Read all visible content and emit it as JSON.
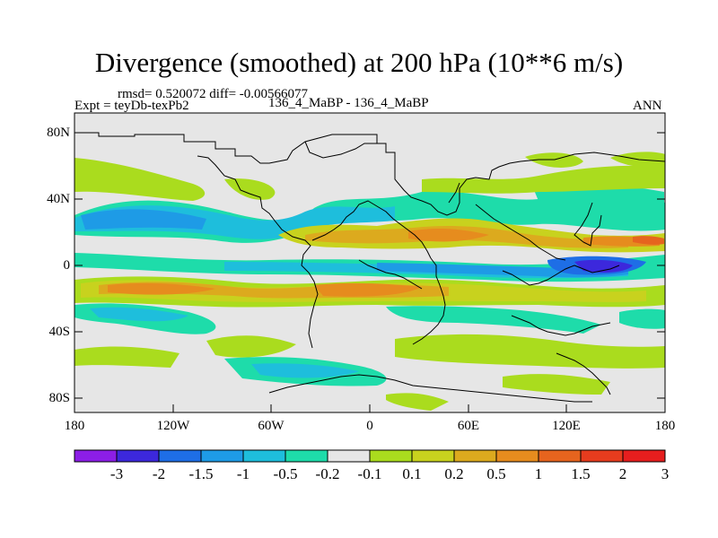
{
  "title": "Divergence (smoothed) at 200 hPa (10**6 m/s)",
  "stats": "rmsd= 0.520072 diff= -0.00566077",
  "experiment": "Expt = teyDb-texPb2",
  "case": "136_4_MaBP - 136_4_MaBP",
  "period": "ANN",
  "lat_ticks": [
    "80N",
    "40N",
    "0",
    "40S",
    "80S"
  ],
  "lon_ticks": [
    "180",
    "120W",
    "60W",
    "0",
    "60E",
    "120E",
    "180"
  ],
  "colorbar": {
    "labels": [
      "-3",
      "-2",
      "-1.5",
      "-1",
      "-0.5",
      "-0.2",
      "-0.1",
      "0.1",
      "0.2",
      "0.5",
      "1",
      "1.5",
      "2",
      "3"
    ],
    "colors": [
      "#8c1ee6",
      "#3c28dc",
      "#1e6ee6",
      "#1e9be6",
      "#1ebedc",
      "#1edcaa",
      "#e6e6e6",
      "#aadc1e",
      "#c8d21e",
      "#dcaa1e",
      "#e68c1e",
      "#e6641e",
      "#e63c1e",
      "#e61e1e"
    ]
  },
  "colors": {
    "background": "#e6e6e6",
    "coastline": "#000000"
  }
}
